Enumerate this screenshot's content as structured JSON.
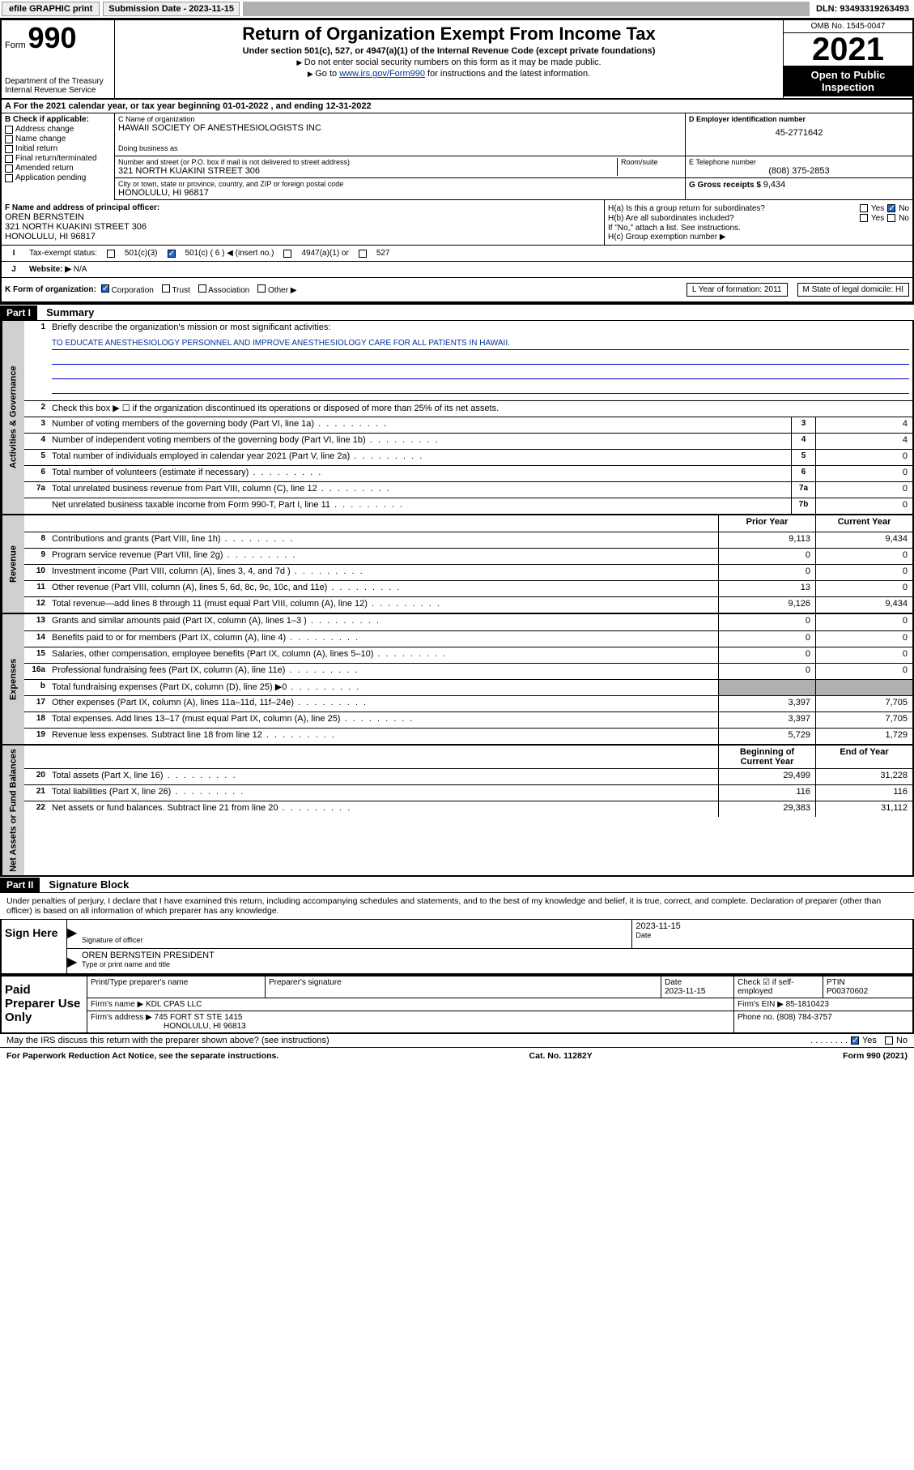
{
  "topbar": {
    "efile": "efile GRAPHIC print",
    "sub_label": "Submission Date - 2023-11-15",
    "dln": "DLN: 93493319263493"
  },
  "header": {
    "form_word": "Form",
    "form_num": "990",
    "dept1": "Department of the Treasury",
    "dept2": "Internal Revenue Service",
    "title": "Return of Organization Exempt From Income Tax",
    "sub": "Under section 501(c), 527, or 4947(a)(1) of the Internal Revenue Code (except private foundations)",
    "note1": "Do not enter social security numbers on this form as it may be made public.",
    "note2_a": "Go to ",
    "note2_link": "www.irs.gov/Form990",
    "note2_b": " for instructions and the latest information.",
    "omb": "OMB No. 1545-0047",
    "year": "2021",
    "open": "Open to Public Inspection"
  },
  "row_a": "A For the 2021 calendar year, or tax year beginning 01-01-2022    , and ending 12-31-2022",
  "col_b": {
    "hdr": "B Check if applicable:",
    "opts": [
      "Address change",
      "Name change",
      "Initial return",
      "Final return/terminated",
      "Amended return",
      "Application pending"
    ]
  },
  "cd": {
    "c_label": "C Name of organization",
    "c_name": "HAWAII SOCIETY OF ANESTHESIOLOGISTS INC",
    "dba_label": "Doing business as",
    "addr_label": "Number and street (or P.O. box if mail is not delivered to street address)",
    "room_label": "Room/suite",
    "addr": "321 NORTH KUAKINI STREET 306",
    "city_label": "City or town, state or province, country, and ZIP or foreign postal code",
    "city": "HONOLULU, HI  96817",
    "d_label": "D Employer identification number",
    "d_val": "45-2771642",
    "e_label": "E Telephone number",
    "e_val": "(808) 375-2853",
    "g_label": "G Gross receipts $ ",
    "g_val": "9,434"
  },
  "fh": {
    "f_label": "F Name and address of principal officer:",
    "f_name": "OREN BERNSTEIN",
    "f_addr1": "321 NORTH KUAKINI STREET 306",
    "f_addr2": "HONOLULU, HI  96817",
    "ha": "H(a)  Is this a group return for subordinates?",
    "hb": "H(b)  Are all subordinates included?",
    "hb_note": "If \"No,\" attach a list. See instructions.",
    "hc": "H(c)  Group exemption number ▶",
    "yes": "Yes",
    "no": "No"
  },
  "i": {
    "label": "Tax-exempt status:",
    "opt1": "501(c)(3)",
    "opt2": "501(c) ( 6 ) ◀ (insert no.)",
    "opt3": "4947(a)(1) or",
    "opt4": "527"
  },
  "j": {
    "label": "Website: ▶",
    "val": "N/A"
  },
  "k": {
    "label": "K Form of organization:",
    "opts": [
      "Corporation",
      "Trust",
      "Association",
      "Other ▶"
    ],
    "l": "L Year of formation: 2011",
    "m": "M State of legal domicile: HI"
  },
  "part1": {
    "hdr": "Part I",
    "title": "Summary"
  },
  "summary": {
    "sections": [
      {
        "label": "Activities & Governance",
        "rows": [
          {
            "n": "1",
            "t": "Briefly describe the organization's mission or most significant activities:",
            "type": "mission"
          },
          {
            "n": "",
            "t": "TO EDUCATE ANESTHESIOLOGY PERSONNEL AND IMPROVE ANESTHESIOLOGY CARE FOR ALL PATIENTS IN HAWAII.",
            "type": "mission-val"
          },
          {
            "n": "2",
            "t": "Check this box ▶ ☐  if the organization discontinued its operations or disposed of more than 25% of its net assets.",
            "type": "plain"
          },
          {
            "n": "3",
            "t": "Number of voting members of the governing body (Part VI, line 1a)",
            "box": "3",
            "v": "4"
          },
          {
            "n": "4",
            "t": "Number of independent voting members of the governing body (Part VI, line 1b)",
            "box": "4",
            "v": "4"
          },
          {
            "n": "5",
            "t": "Total number of individuals employed in calendar year 2021 (Part V, line 2a)",
            "box": "5",
            "v": "0"
          },
          {
            "n": "6",
            "t": "Total number of volunteers (estimate if necessary)",
            "box": "6",
            "v": "0"
          },
          {
            "n": "7a",
            "t": "Total unrelated business revenue from Part VIII, column (C), line 12",
            "box": "7a",
            "v": "0"
          },
          {
            "n": "",
            "t": "Net unrelated business taxable income from Form 990-T, Part I, line 11",
            "box": "7b",
            "v": "0"
          }
        ]
      },
      {
        "label": "Revenue",
        "header": {
          "c1": "Prior Year",
          "c2": "Current Year"
        },
        "rows": [
          {
            "n": "8",
            "t": "Contributions and grants (Part VIII, line 1h)",
            "p": "9,113",
            "c": "9,434"
          },
          {
            "n": "9",
            "t": "Program service revenue (Part VIII, line 2g)",
            "p": "0",
            "c": "0"
          },
          {
            "n": "10",
            "t": "Investment income (Part VIII, column (A), lines 3, 4, and 7d )",
            "p": "0",
            "c": "0"
          },
          {
            "n": "11",
            "t": "Other revenue (Part VIII, column (A), lines 5, 6d, 8c, 9c, 10c, and 11e)",
            "p": "13",
            "c": "0"
          },
          {
            "n": "12",
            "t": "Total revenue—add lines 8 through 11 (must equal Part VIII, column (A), line 12)",
            "p": "9,126",
            "c": "9,434"
          }
        ]
      },
      {
        "label": "Expenses",
        "rows": [
          {
            "n": "13",
            "t": "Grants and similar amounts paid (Part IX, column (A), lines 1–3 )",
            "p": "0",
            "c": "0"
          },
          {
            "n": "14",
            "t": "Benefits paid to or for members (Part IX, column (A), line 4)",
            "p": "0",
            "c": "0"
          },
          {
            "n": "15",
            "t": "Salaries, other compensation, employee benefits (Part IX, column (A), lines 5–10)",
            "p": "0",
            "c": "0"
          },
          {
            "n": "16a",
            "t": "Professional fundraising fees (Part IX, column (A), line 11e)",
            "p": "0",
            "c": "0"
          },
          {
            "n": "b",
            "t": "Total fundraising expenses (Part IX, column (D), line 25) ▶0",
            "p": "shaded",
            "c": "shaded"
          },
          {
            "n": "17",
            "t": "Other expenses (Part IX, column (A), lines 11a–11d, 11f–24e)",
            "p": "3,397",
            "c": "7,705"
          },
          {
            "n": "18",
            "t": "Total expenses. Add lines 13–17 (must equal Part IX, column (A), line 25)",
            "p": "3,397",
            "c": "7,705"
          },
          {
            "n": "19",
            "t": "Revenue less expenses. Subtract line 18 from line 12",
            "p": "5,729",
            "c": "1,729"
          }
        ]
      },
      {
        "label": "Net Assets or Fund Balances",
        "header": {
          "c1": "Beginning of Current Year",
          "c2": "End of Year"
        },
        "rows": [
          {
            "n": "20",
            "t": "Total assets (Part X, line 16)",
            "p": "29,499",
            "c": "31,228"
          },
          {
            "n": "21",
            "t": "Total liabilities (Part X, line 26)",
            "p": "116",
            "c": "116"
          },
          {
            "n": "22",
            "t": "Net assets or fund balances. Subtract line 21 from line 20",
            "p": "29,383",
            "c": "31,112"
          }
        ]
      }
    ]
  },
  "part2": {
    "hdr": "Part II",
    "title": "Signature Block"
  },
  "sig": {
    "decl": "Under penalties of perjury, I declare that I have examined this return, including accompanying schedules and statements, and to the best of my knowledge and belief, it is true, correct, and complete. Declaration of preparer (other than officer) is based on all information of which preparer has any knowledge.",
    "sign_here": "Sign Here",
    "sig_officer": "Signature of officer",
    "date_label": "Date",
    "date_val": "2023-11-15",
    "name": "OREN BERNSTEIN PRESIDENT",
    "name_label": "Type or print name and title"
  },
  "paid": {
    "title": "Paid Preparer Use Only",
    "h1": "Print/Type preparer's name",
    "h2": "Preparer's signature",
    "h3": "Date",
    "h3v": "2023-11-15",
    "h4": "Check ☑ if self-employed",
    "h5": "PTIN",
    "h5v": "P00370602",
    "firm_name_l": "Firm's name    ▶",
    "firm_name": "KDL CPAS LLC",
    "firm_ein_l": "Firm's EIN ▶",
    "firm_ein": "85-1810423",
    "firm_addr_l": "Firm's address ▶",
    "firm_addr1": "745 FORT ST STE 1415",
    "firm_addr2": "HONOLULU, HI  96813",
    "phone_l": "Phone no.",
    "phone": "(808) 784-3757"
  },
  "may": {
    "text": "May the IRS discuss this return with the preparer shown above? (see instructions)",
    "yes": "Yes",
    "no": "No"
  },
  "footer": {
    "left": "For Paperwork Reduction Act Notice, see the separate instructions.",
    "mid": "Cat. No. 11282Y",
    "right": "Form 990 (2021)"
  }
}
